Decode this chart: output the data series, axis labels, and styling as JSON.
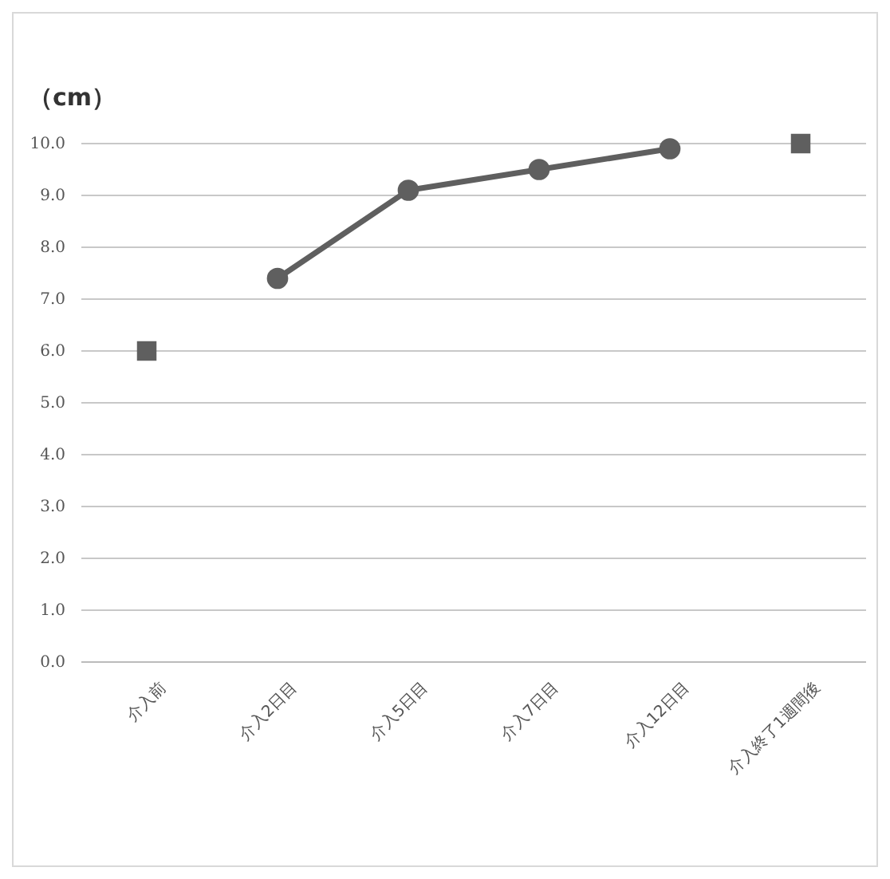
{
  "chart_data": {
    "type": "line",
    "ylabel": "（cm）",
    "categories": [
      "介入前",
      "介入2日目",
      "介入5日目",
      "介入7日目",
      "介入12日目",
      "介入終了1週間後"
    ],
    "series": [
      {
        "type": "scatter",
        "marker": "square",
        "color": "#5f5f5f",
        "values": [
          6.0,
          null,
          null,
          null,
          null,
          10.0
        ]
      },
      {
        "marker": "circle",
        "color": "#5f5f5f",
        "values": [
          null,
          7.4,
          9.1,
          9.5,
          9.9,
          null
        ]
      }
    ],
    "ylim": [
      0,
      10
    ],
    "yticks": [
      {
        "value": 0,
        "label": "0.0"
      },
      {
        "value": 1,
        "label": "1.0"
      },
      {
        "value": 2,
        "label": "2.0"
      },
      {
        "value": 3,
        "label": "3.0"
      },
      {
        "value": 4,
        "label": "4.0"
      },
      {
        "value": 5,
        "label": "5.0"
      },
      {
        "value": 6,
        "label": "6.0"
      },
      {
        "value": 7,
        "label": "7.0"
      },
      {
        "value": 8,
        "label": "8.0"
      },
      {
        "value": 9,
        "label": "9.0"
      },
      {
        "value": 10,
        "label": "10.0"
      }
    ],
    "grid": "y"
  }
}
